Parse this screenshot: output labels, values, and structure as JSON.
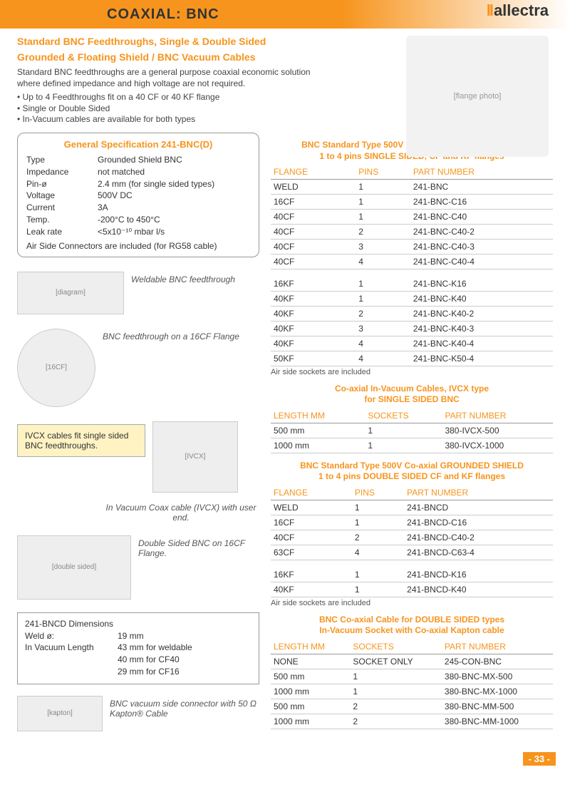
{
  "header": {
    "title": "COAXIAL: BNC",
    "logo_text": "allectra"
  },
  "subtitle1": "Standard BNC  Feedthroughs, Single & Double Sided",
  "subtitle2": "Grounded & Floating Shield / BNC Vacuum Cables",
  "intro": "Standard BNC feedthroughs are a general purpose coaxial economic solution where defined impedance and high voltage are not required.",
  "bullets": [
    "Up to 4 Feedthroughs fit on a 40 CF or 40 KF flange",
    "Single or Double Sided",
    "In-Vacuum cables are available for both types"
  ],
  "spec": {
    "title": "General Specification 241-BNC(D)",
    "rows": [
      [
        "Type",
        "Grounded Shield BNC"
      ],
      [
        "Impedance",
        "not matched"
      ],
      [
        "Pin-ø",
        "2.4 mm (for single sided types)"
      ],
      [
        "Voltage",
        "500V DC"
      ],
      [
        "Current",
        "3A"
      ],
      [
        "Temp.",
        "-200°C to 450°C"
      ],
      [
        "Leak rate",
        "<5x10⁻¹⁰ mbar l/s"
      ]
    ],
    "note": "Air Side Connectors are included (for RG58 cable)"
  },
  "captions": {
    "weldable": "Weldable BNC feedthrough",
    "flange16": "BNC feedthrough on a 16CF Flange",
    "ivcx_note": "IVCX cables fit single sided BNC feedthroughs.",
    "ivcx_cable": "In Vacuum Coax cable (IVCX) with user end.",
    "double": "Double Sided BNC  on 16CF Flange.",
    "kapton": "BNC vacuum side connector with 50 Ω Kapton® Cable"
  },
  "bncd_dim": {
    "title": "241-BNCD Dimensions",
    "rows": [
      [
        "Weld ø:",
        "19 mm"
      ],
      [
        "In Vacuum Length",
        "43 mm for weldable"
      ],
      [
        "",
        "40 mm for CF40"
      ],
      [
        "",
        "29 mm for CF16"
      ]
    ]
  },
  "tables": {
    "t1": {
      "title": "BNC Standard Type 500V Coaxial  GROUNDED SHIELD\n1 to 4 pins SINGLE SIDED, CF and KF flanges",
      "cols": [
        "FLANGE",
        "PINS",
        "PART NUMBER"
      ],
      "rows": [
        [
          "WELD",
          "1",
          "241-BNC"
        ],
        [
          "16CF",
          "1",
          "241-BNC-C16"
        ],
        [
          "40CF",
          "1",
          "241-BNC-C40"
        ],
        [
          "40CF",
          "2",
          "241-BNC-C40-2"
        ],
        [
          "40CF",
          "3",
          "241-BNC-C40-3"
        ],
        [
          "40CF",
          "4",
          "241-BNC-C40-4"
        ]
      ],
      "rows2": [
        [
          "16KF",
          "1",
          "241-BNC-K16"
        ],
        [
          "40KF",
          "1",
          "241-BNC-K40"
        ],
        [
          "40KF",
          "2",
          "241-BNC-K40-2"
        ],
        [
          "40KF",
          "3",
          "241-BNC-K40-3"
        ],
        [
          "40KF",
          "4",
          "241-BNC-K40-4"
        ],
        [
          "50KF",
          "4",
          "241-BNC-K50-4"
        ]
      ],
      "foot": "Air side sockets are included"
    },
    "t2": {
      "title": "Co-axial  In-Vacuum Cables, IVCX type\nfor SINGLE SIDED BNC",
      "cols": [
        "LENGTH MM",
        "SOCKETS",
        "PART NUMBER"
      ],
      "rows": [
        [
          "500 mm",
          "1",
          "380-IVCX-500"
        ],
        [
          "1000 mm",
          "1",
          "380-IVCX-1000"
        ]
      ]
    },
    "t3": {
      "title": "BNC Standard Type 500V Co-axial  GROUNDED SHIELD\n1 to 4 pins DOUBLE SIDED CF and KF flanges",
      "cols": [
        "FLANGE",
        "PINS",
        "PART NUMBER"
      ],
      "rows": [
        [
          "WELD",
          "1",
          "241-BNCD"
        ],
        [
          "16CF",
          "1",
          "241-BNCD-C16"
        ],
        [
          "40CF",
          "2",
          "241-BNCD-C40-2"
        ],
        [
          "63CF",
          "4",
          "241-BNCD-C63-4"
        ]
      ],
      "rows2": [
        [
          "16KF",
          "1",
          "241-BNCD-K16"
        ],
        [
          "40KF",
          "1",
          "241-BNCD-K40"
        ]
      ],
      "foot": "Air side sockets are included"
    },
    "t4": {
      "title": "BNC Co-axial Cable for DOUBLE SIDED types\nIn-Vacuum Socket with Co-axial Kapton cable",
      "cols": [
        "LENGTH MM",
        "SOCKETS",
        "PART NUMBER"
      ],
      "rows": [
        [
          "NONE",
          "SOCKET ONLY",
          "245-CON-BNC"
        ],
        [
          "500 mm",
          "1",
          "380-BNC-MX-500"
        ],
        [
          "1000 mm",
          "1",
          "380-BNC-MX-1000"
        ],
        [
          "500 mm",
          "2",
          "380-BNC-MM-500"
        ],
        [
          "1000 mm",
          "2",
          "380-BNC-MM-1000"
        ]
      ]
    }
  },
  "page_number": "- 33 -",
  "colors": {
    "accent": "#f7941d",
    "text": "#333333",
    "rule": "#cccccc",
    "note_bg": "#fff3c4"
  }
}
